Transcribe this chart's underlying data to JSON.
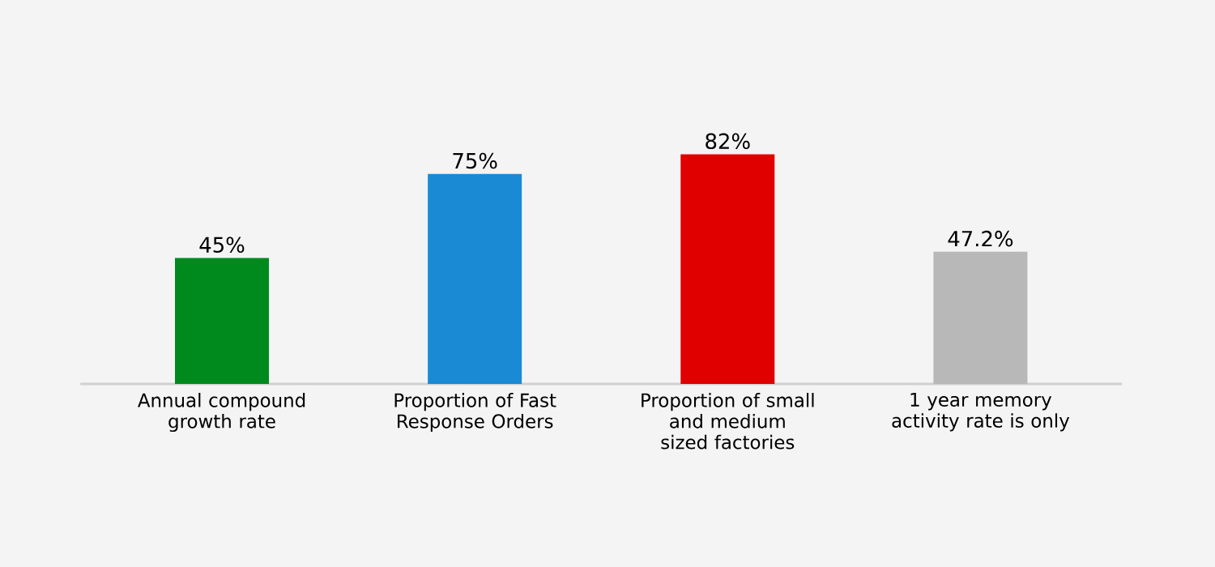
{
  "chart_data": {
    "type": "bar",
    "categories": [
      "Annual compound growth rate",
      "Proportion of Fast Response Orders",
      "Proportion of small and medium sized factories",
      "1 year memory activity rate is only"
    ],
    "values": [
      45,
      75,
      82,
      47.2
    ],
    "value_labels": [
      "45%",
      "75%",
      "82%",
      "47.2%"
    ],
    "colors": [
      "#008a1e",
      "#1a8ad4",
      "#e00000",
      "#b8b8b8"
    ],
    "tick_labels": "x"
  }
}
